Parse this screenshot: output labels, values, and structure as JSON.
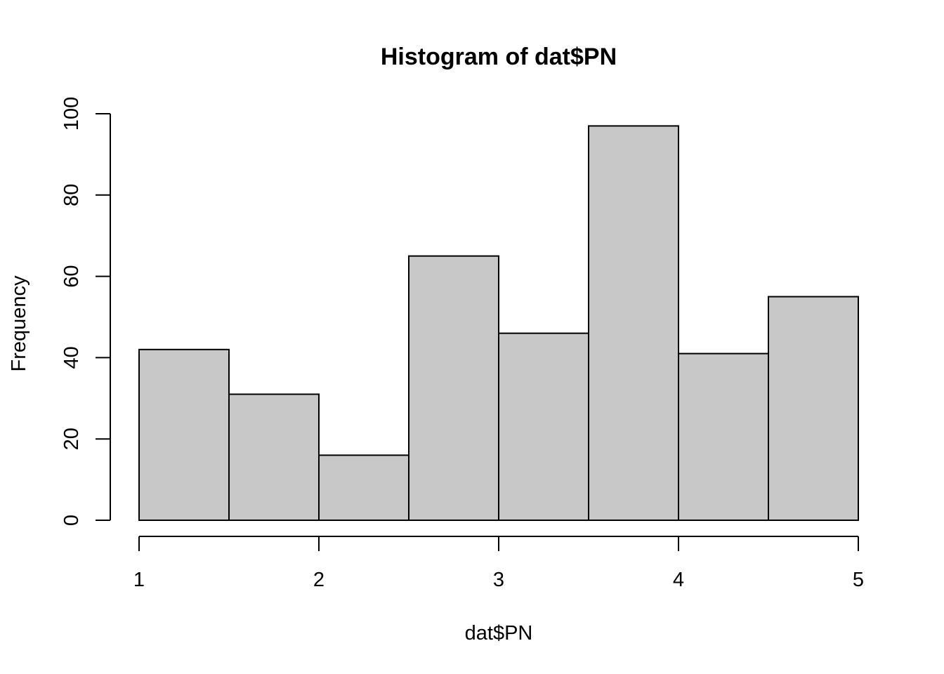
{
  "chart_data": {
    "type": "bar",
    "title": "Histogram of dat$PN",
    "xlabel": "dat$PN",
    "ylabel": "Frequency",
    "bin_edges": [
      1,
      1.5,
      2,
      2.5,
      3,
      3.5,
      4,
      4.5,
      5
    ],
    "values": [
      42,
      31,
      16,
      65,
      46,
      97,
      41,
      55
    ],
    "xlim": [
      1,
      5
    ],
    "ylim": [
      0,
      100
    ],
    "x_ticks": [
      1,
      2,
      3,
      4,
      5
    ],
    "y_ticks": [
      0,
      20,
      40,
      60,
      80,
      100
    ],
    "bar_color": "#c8c8c8",
    "grid": false,
    "legend": "none"
  }
}
